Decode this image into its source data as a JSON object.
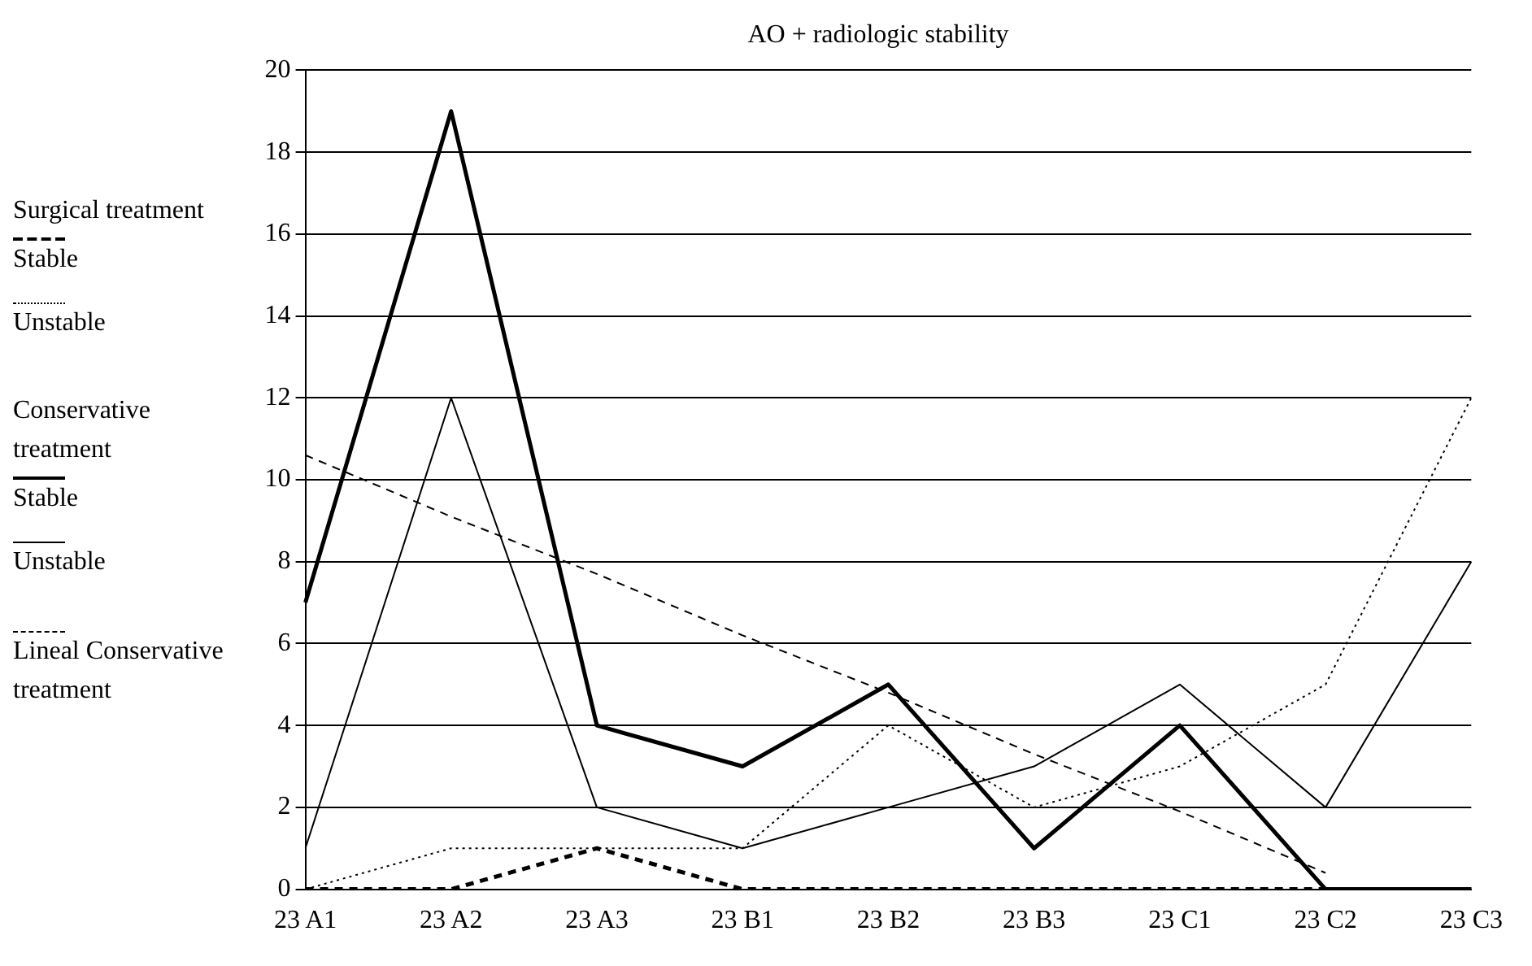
{
  "chart_data": {
    "type": "line",
    "title": "AO + radiologic stability",
    "categories": [
      "23 A1",
      "23 A2",
      "23 A3",
      "23 B1",
      "23 B2",
      "23 B3",
      "23 C1",
      "23 C2",
      "23 C3"
    ],
    "series": [
      {
        "name": "Stable",
        "color": "#000000",
        "line_style": "dashed",
        "values": [
          0,
          0,
          1,
          0,
          0,
          0,
          0,
          0,
          0
        ]
      },
      {
        "name": "Unstable",
        "color": "#000000",
        "line_style": "dotted",
        "values": [
          0,
          1,
          1,
          1,
          4,
          2,
          3,
          5,
          12
        ]
      },
      {
        "name": "Stable",
        "color": "#000000",
        "line_style": "solid",
        "values": [
          7,
          19,
          4,
          3,
          5,
          1,
          4,
          0,
          0
        ]
      },
      {
        "name": "Unstable",
        "color": "#000000",
        "line_style": "solid",
        "values": [
          1,
          12,
          2,
          1,
          2,
          3,
          5,
          2,
          8
        ]
      },
      {
        "name": "Lineal Conservative treatment",
        "color": "#000000",
        "line_style": "dashed",
        "values": [
          10.6,
          9.1,
          7.7,
          6.2,
          4.8,
          3.3,
          1.9,
          0.4,
          null
        ]
      }
    ],
    "annotations": [
      "Surgical treatment",
      "Conservative treatment"
    ],
    "ylim": [
      0,
      20
    ],
    "yticks": [
      0,
      2,
      4,
      6,
      8,
      10,
      12,
      14,
      16,
      18,
      20
    ],
    "grid": "y",
    "legend": "left",
    "marker": "none"
  }
}
